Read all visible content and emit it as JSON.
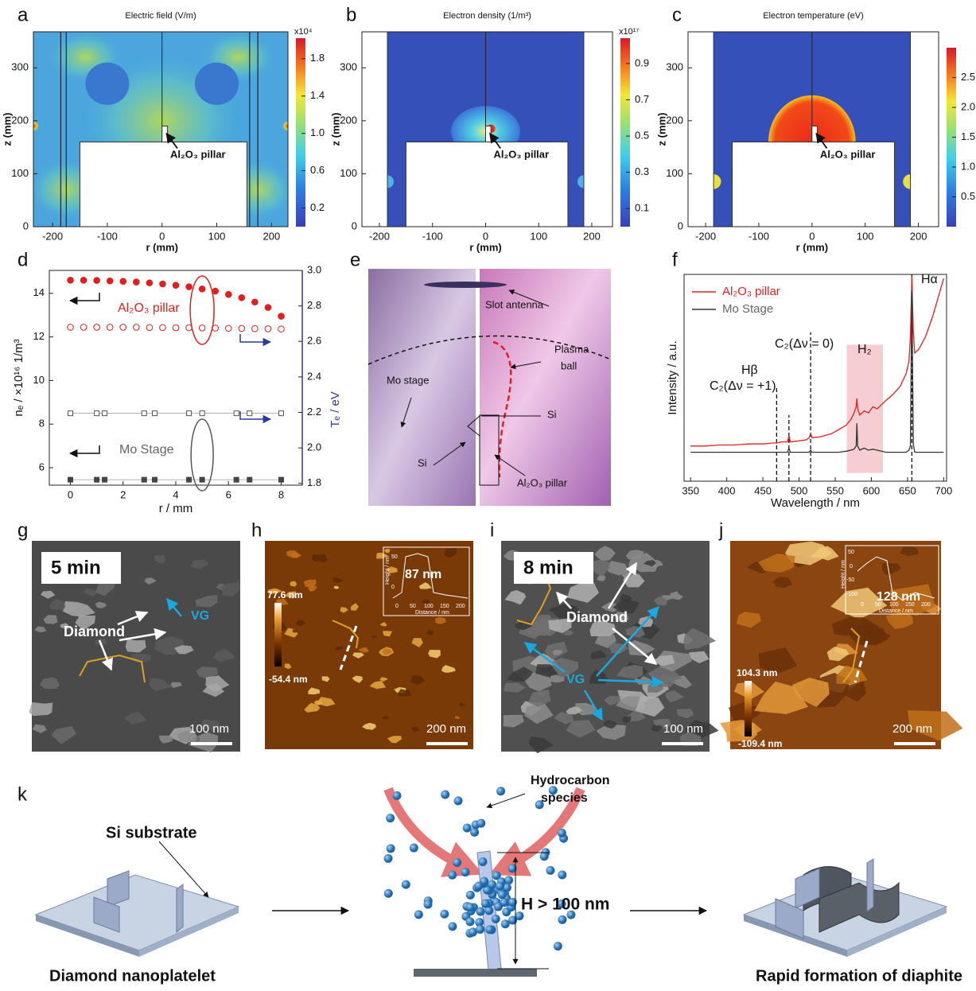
{
  "panel_labels": [
    "a",
    "b",
    "c",
    "d",
    "e",
    "f",
    "g",
    "h",
    "i",
    "j",
    "k"
  ],
  "chart_data": [
    {
      "type": "heatmap",
      "title": "Electric field (V/m)",
      "xlabel": "r (mm)",
      "ylabel": "z (mm)",
      "xlim": [
        -235,
        230
      ],
      "ylim": [
        0,
        368
      ],
      "xticks": [
        -200,
        -100,
        0,
        100,
        200
      ],
      "yticks": [
        0,
        100,
        200,
        300
      ],
      "annotation": "Al₂O₃ pillar",
      "colorbar": {
        "label": "x10⁴",
        "lim": [
          0,
          2.02
        ],
        "ticks": [
          0.2,
          0.6,
          {
            "value": 1.0,
            "label": "1.0"
          },
          1.4,
          1.8
        ]
      }
    },
    {
      "type": "heatmap",
      "title": "Electron density (1/m³)",
      "xlabel": "r (mm)",
      "ylabel": "z (mm)",
      "xlim": [
        -233,
        239
      ],
      "ylim": [
        0,
        368
      ],
      "xticks": [
        -200,
        -100,
        0,
        100,
        200
      ],
      "yticks": [
        0,
        100,
        200,
        300
      ],
      "annotation": "Al₂O₃ pillar",
      "colorbar": {
        "label": "x10¹⁷",
        "lim": [
          0,
          1.04
        ],
        "ticks": [
          0.1,
          0.3,
          0.5,
          0.7,
          0.9
        ]
      }
    },
    {
      "type": "heatmap",
      "title": "Electron temperature (eV)",
      "xlabel": "r (mm)",
      "ylabel": "z (mm)",
      "xlim": [
        -233,
        238
      ],
      "ylim": [
        0,
        368
      ],
      "xticks": [
        -200,
        -100,
        0,
        100,
        200
      ],
      "yticks": [
        0,
        100,
        200,
        300
      ],
      "annotation": "Al₂O₃ pillar",
      "colorbar": {
        "lim": [
          0,
          3.0
        ],
        "ticks": [
          0.5,
          {
            "value": 1.0,
            "label": "1.0"
          },
          1.5,
          {
            "value": 2.0,
            "label": "2.0"
          },
          2.5
        ]
      }
    },
    {
      "type": "scatter",
      "xlabel": "r / mm",
      "ylabel": "nₑ / ×10¹⁶ 1/m³",
      "y2label": "Tₑ / eV",
      "xlim": [
        -0.8,
        8.8
      ],
      "ylim": [
        5.2,
        15.05
      ],
      "y2lim": [
        1.79,
        3.0
      ],
      "xticks": [
        0,
        2,
        4,
        6,
        8
      ],
      "yticks": [
        6,
        8,
        10,
        12,
        14
      ],
      "y2ticks": [
        1.8,
        {
          "value": 2.0,
          "label": "2.0"
        },
        2.2,
        2.4,
        2.6,
        2.8,
        {
          "value": 3.0,
          "label": "3.0"
        }
      ],
      "annotations": [
        "Al₂O₃ pillar",
        "Mo Stage"
      ],
      "series": [
        {
          "color": "#e02020",
          "marker": "circle",
          "filled": true,
          "x": [
            0,
            0.5,
            1,
            1.5,
            2,
            2.5,
            3,
            3.5,
            4,
            4.5,
            5,
            5.5,
            6,
            6.5,
            7,
            7.5,
            8
          ],
          "values": [
            14.6,
            14.6,
            14.59,
            14.57,
            14.55,
            14.52,
            14.48,
            14.43,
            14.37,
            14.3,
            14.2,
            14.1,
            13.95,
            13.8,
            13.6,
            13.35,
            12.95
          ]
        },
        {
          "color": "#e02020",
          "marker": "circle",
          "filled": false,
          "axis": "y2",
          "x": [
            0,
            0.5,
            1,
            1.5,
            2,
            2.5,
            3,
            3.5,
            4,
            4.5,
            5,
            5.5,
            6,
            6.5,
            7,
            7.5,
            8
          ],
          "values": [
            2.68,
            2.68,
            2.68,
            2.68,
            2.68,
            2.68,
            2.678,
            2.678,
            2.677,
            2.677,
            2.676,
            2.675,
            2.674,
            2.673,
            2.672,
            2.671,
            2.67
          ]
        },
        {
          "color": "#555555",
          "marker": "square",
          "filled": false,
          "axis": "y2",
          "line": true,
          "x": [
            0,
            1,
            1.3,
            2.8,
            3.2,
            4.5,
            5,
            6.3,
            6.8,
            8
          ],
          "values": [
            2.195,
            2.195,
            2.195,
            2.195,
            2.195,
            2.195,
            2.195,
            2.195,
            2.195,
            2.195
          ]
        },
        {
          "color": "#444444",
          "marker": "square",
          "filled": true,
          "line": true,
          "x": [
            0,
            1,
            1.3,
            2.8,
            3.2,
            4.5,
            5,
            6.3,
            6.8,
            8
          ],
          "values": [
            5.45,
            5.45,
            5.45,
            5.45,
            5.45,
            5.45,
            5.45,
            5.45,
            5.45,
            5.45
          ]
        }
      ]
    },
    {
      "type": "line",
      "xlabel": "Wavelength / nm",
      "ylabel": "Intensity / a.u.",
      "xlim": [
        341,
        704
      ],
      "ylim": [
        0,
        100
      ],
      "xticks": [
        350,
        400,
        450,
        500,
        550,
        600,
        650,
        700
      ],
      "highlight": [
        566,
        616
      ],
      "vlines": [
        469,
        486,
        516,
        656
      ],
      "annotations": [
        "C₂(Δν = +1)",
        "Hβ",
        "C₂(Δν = 0)",
        "H₂",
        "Hα"
      ],
      "x": [
        350,
        370,
        390,
        410,
        430,
        450,
        465,
        470,
        475,
        484,
        486,
        488,
        500,
        510,
        514,
        516,
        518,
        530,
        545,
        555,
        565,
        572,
        576,
        579,
        580,
        581,
        584,
        590,
        596,
        602,
        608,
        614,
        620,
        630,
        640,
        648,
        652,
        654,
        656,
        658,
        660,
        666,
        675,
        685,
        695,
        700
      ],
      "series": [
        {
          "name": "Al₂O₃ pillar",
          "color": "#e02020",
          "values": [
            17,
            17,
            17.5,
            17.5,
            18,
            18,
            18.5,
            18.5,
            19,
            19,
            22,
            19,
            19.5,
            20,
            21,
            23,
            21,
            21.5,
            23,
            25,
            27,
            30,
            33,
            36,
            40,
            35,
            32,
            34,
            33,
            36,
            35,
            37,
            39,
            42,
            46,
            52,
            58,
            70,
            99,
            72,
            62,
            64,
            70,
            80,
            92,
            98
          ]
        },
        {
          "name": "Mo Stage",
          "color": "#333333",
          "values": [
            14,
            14,
            14,
            14,
            14,
            14,
            14,
            14,
            14,
            14,
            16,
            14,
            14,
            14,
            14,
            15,
            14,
            14,
            14,
            14,
            14.5,
            15,
            15.5,
            17,
            28,
            17,
            15,
            16,
            15,
            15.5,
            15,
            14.5,
            14,
            14,
            14,
            14,
            15,
            17,
            92,
            18,
            14,
            14,
            14,
            14,
            14,
            14
          ]
        }
      ]
    }
  ],
  "photo_e": {
    "antenna": "Slot antenna",
    "plasma_ball": [
      "Plasma",
      "ball"
    ],
    "stage": "Mo stage",
    "si_right": "Si",
    "si_left": "Si",
    "pillar": "Al₂O₃ pillar"
  },
  "sem_g": {
    "time": "5 min",
    "diamond": "Diamond",
    "vg": "VG",
    "scale": "100 nm"
  },
  "afm_h": {
    "height_max": "77.6 nm",
    "height_min": "-54.4 nm",
    "scale": "200 nm",
    "inset": {
      "step": "87 nm",
      "xlabel": "Distance / nm",
      "ylabel": "Height / nm",
      "xticks": [
        "0",
        "50",
        "100",
        "150",
        "200"
      ],
      "yticks": [
        "50",
        "0"
      ]
    }
  },
  "sem_i": {
    "time": "8 min",
    "diamond": "Diamond",
    "vg": "VG",
    "scale": "100 nm"
  },
  "afm_j": {
    "height_max": "104.3 nm",
    "height_min": "-109.4 nm",
    "scale": "200 nm",
    "inset": {
      "step": "128 nm",
      "xlabel": "Distance / nm",
      "ylabel": "Height / nm",
      "xticks": [
        "0",
        "50",
        "100",
        "150",
        "200"
      ],
      "yticks": [
        "50",
        "0",
        "-50",
        "-100"
      ]
    }
  },
  "schematic_k": {
    "substrate": "Si substrate",
    "left": "Diamond nanoplatelet",
    "species": [
      "Hydrocarbon",
      "species"
    ],
    "height": "H > 100 nm",
    "right": "Rapid formation of diaphite"
  }
}
